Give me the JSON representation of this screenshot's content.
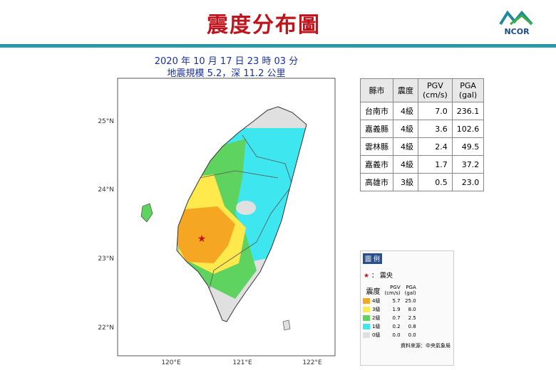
{
  "header": {
    "title": "震度分布圖",
    "logo": "NCOR"
  },
  "map": {
    "time": "2020 年 10 月 17 日 23 時 03 分",
    "info": "地震規模 5.2，深 11.2 公里",
    "lat_labels": [
      "25°N",
      "24°N",
      "23°N",
      "22°N"
    ],
    "lon_labels": [
      "120°E",
      "121°E",
      "122°E"
    ]
  },
  "table": {
    "header": [
      "縣市",
      "震度",
      "PGV\n(cm/s)",
      "PGA\n(gal)"
    ],
    "rows": [
      [
        "台南市",
        "4級",
        "7.0",
        "236.1"
      ],
      [
        "嘉義縣",
        "4級",
        "3.6",
        "102.6"
      ],
      [
        "雲林縣",
        "4級",
        "2.4",
        "49.5"
      ],
      [
        "嘉義市",
        "4級",
        "1.7",
        "37.2"
      ],
      [
        "高雄市",
        "3級",
        "0.5",
        "23.0"
      ]
    ]
  },
  "legend": {
    "title": "圖 例",
    "epicenter": "震央",
    "header": [
      "震度",
      "PGV\n(cm/s)",
      "PGA\n(gal)"
    ],
    "rows": [
      [
        "4級",
        "5.7",
        "25.0"
      ],
      [
        "3級",
        "1.9",
        "8.0"
      ],
      [
        "2級",
        "0.7",
        "2.5"
      ],
      [
        "1級",
        "0.2",
        "0.8"
      ],
      [
        "0級",
        "0.0",
        "0.0"
      ]
    ],
    "source": "資料來源：中央氣象局"
  }
}
